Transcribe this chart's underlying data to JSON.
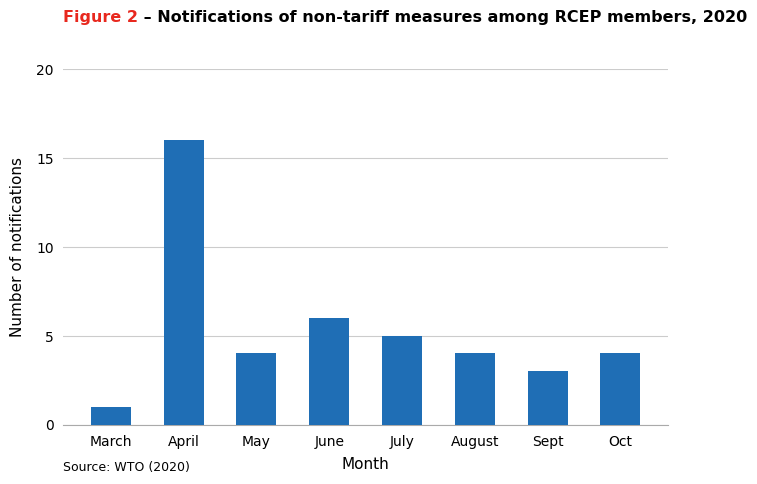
{
  "title_red": "Figure 2",
  "title_black": " – Notifications of non-tariff measures among RCEP members, 2020",
  "categories": [
    "March",
    "April",
    "May",
    "June",
    "July",
    "August",
    "Sept",
    "Oct"
  ],
  "values": [
    1,
    16,
    4,
    6,
    5,
    4,
    3,
    4
  ],
  "bar_color": "#1f6eb5",
  "xlabel": "Month",
  "ylabel": "Number of notifications",
  "ylim": [
    0,
    20
  ],
  "yticks": [
    0,
    5,
    10,
    15,
    20
  ],
  "source_text": "Source: WTO (2020)",
  "background_color": "#ffffff",
  "grid_color": "#cccccc",
  "title_fontsize": 11.5,
  "axis_label_fontsize": 11,
  "tick_fontsize": 10,
  "source_fontsize": 9,
  "bar_width": 0.55
}
